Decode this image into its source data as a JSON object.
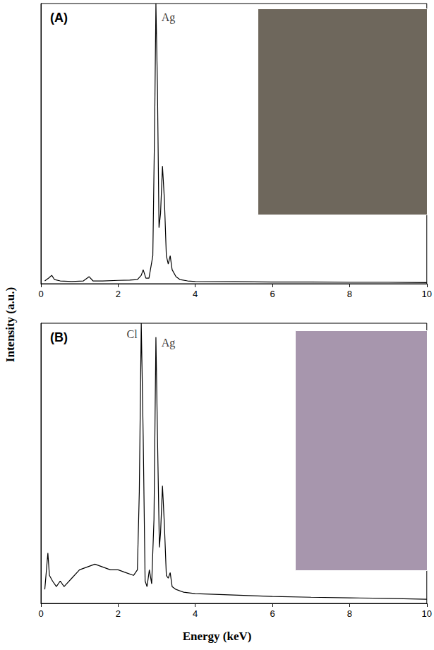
{
  "xlabel": "Energy (keV)",
  "ylabel": "Intensity (a.u.)",
  "chart_data": [
    {
      "type": "line",
      "title": "(A)",
      "color": "#000000",
      "grid": false,
      "tick_labels": "x",
      "xlim": [
        0,
        10
      ],
      "xticks": [
        0,
        2,
        4,
        6,
        8,
        10
      ],
      "ylim": [
        0,
        100
      ],
      "x": [
        0.1,
        0.2,
        0.28,
        0.35,
        0.5,
        0.8,
        1.1,
        1.25,
        1.35,
        1.6,
        2.0,
        2.3,
        2.5,
        2.6,
        2.65,
        2.72,
        2.8,
        2.9,
        2.95,
        2.98,
        3.02,
        3.06,
        3.1,
        3.15,
        3.2,
        3.25,
        3.3,
        3.35,
        3.4,
        3.5,
        3.6,
        3.8,
        4.0,
        5,
        6,
        7,
        8,
        9,
        10
      ],
      "values": [
        1,
        2,
        3,
        1.5,
        1,
        0.8,
        1,
        2.5,
        1,
        1,
        1.2,
        1.3,
        1.5,
        3,
        5,
        2,
        2,
        10,
        60,
        100,
        70,
        20,
        25,
        42,
        30,
        10,
        7,
        10,
        5,
        2.5,
        1.5,
        1,
        0.8,
        0.7,
        0.6,
        0.6,
        0.5,
        0.5,
        0.4
      ],
      "annotations": [
        {
          "text": "Ag",
          "x": 3.3,
          "y": 95
        }
      ]
    },
    {
      "type": "line",
      "title": "(B)",
      "color": "#000000",
      "grid": false,
      "tick_labels": "x",
      "xlim": [
        0,
        10
      ],
      "xticks": [
        0,
        2,
        4,
        6,
        8,
        10
      ],
      "ylim": [
        0,
        100
      ],
      "x": [
        0.1,
        0.18,
        0.22,
        0.3,
        0.4,
        0.5,
        0.6,
        0.8,
        1.0,
        1.2,
        1.4,
        1.6,
        1.8,
        2.0,
        2.2,
        2.4,
        2.5,
        2.55,
        2.6,
        2.65,
        2.7,
        2.75,
        2.81,
        2.87,
        2.93,
        2.98,
        3.02,
        3.07,
        3.1,
        3.15,
        3.2,
        3.25,
        3.3,
        3.35,
        3.4,
        3.5,
        3.7,
        4.0,
        5,
        6,
        7,
        8,
        9,
        10
      ],
      "values": [
        5,
        18,
        10,
        8,
        6,
        8,
        6,
        9,
        12,
        13,
        14,
        13,
        12,
        12,
        11,
        10,
        12,
        40,
        100,
        60,
        8,
        6,
        12,
        7,
        30,
        95,
        60,
        20,
        25,
        42,
        28,
        10,
        9,
        11,
        6,
        5,
        4,
        3.5,
        3,
        2.5,
        2.2,
        2,
        1.8,
        1.5
      ],
      "annotations": [
        {
          "text": "Cl",
          "x": 2.36,
          "y": 96
        },
        {
          "text": "Ag",
          "x": 3.3,
          "y": 93
        }
      ]
    }
  ]
}
